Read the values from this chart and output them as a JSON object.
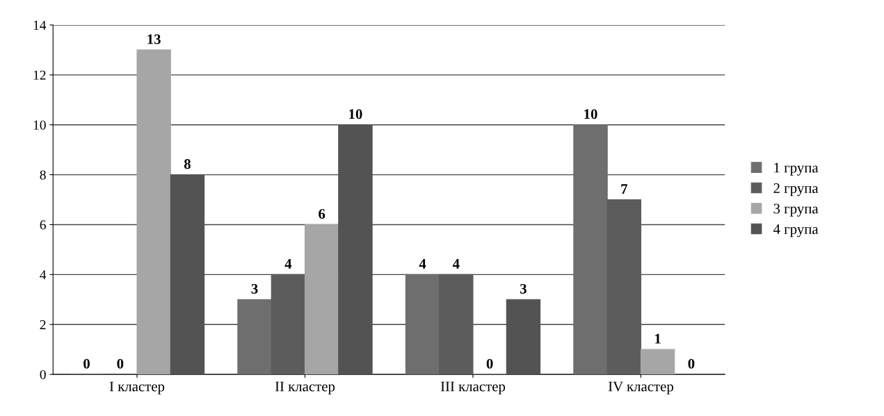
{
  "chart_data": {
    "type": "bar",
    "categories": [
      "I кластер",
      "II кластер",
      "III кластер",
      "IV кластер"
    ],
    "series": [
      {
        "name": "1 група",
        "color": "#6e6e6e",
        "values": [
          0,
          3,
          4,
          10
        ]
      },
      {
        "name": "2 група",
        "color": "#5c5c5c",
        "values": [
          0,
          4,
          4,
          7
        ]
      },
      {
        "name": "3 група",
        "color": "#a6a6a6",
        "values": [
          13,
          6,
          0,
          1
        ]
      },
      {
        "name": "4 група",
        "color": "#535353",
        "values": [
          8,
          10,
          3,
          0
        ]
      }
    ],
    "ylim": [
      0,
      14
    ],
    "yticks": [
      0,
      2,
      4,
      6,
      8,
      10,
      12,
      14
    ],
    "grid": "y",
    "legend": "right",
    "data_labels": true
  }
}
